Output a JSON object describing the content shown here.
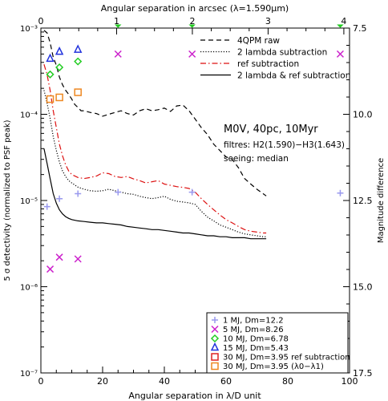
{
  "chart_data": {
    "type": "line",
    "title": "",
    "xlabel": "Angular separation in λ/D unit",
    "x2label": "Angular separation in arcsec (λ=1.590μm)",
    "ylabel": "5 σ detectivity (normalized to PSF peak)",
    "y2label": "Magnitude difference",
    "xlim": [
      0,
      100
    ],
    "ylim": [
      1e-07,
      0.001
    ],
    "y_scale": "log",
    "x2lim": [
      0,
      4.075
    ],
    "y2lim": [
      7.5,
      17.5
    ],
    "x_ticks": [
      "0",
      "20",
      "40",
      "60",
      "80",
      "100"
    ],
    "x2_ticks": [
      "0",
      "1",
      "2",
      "3",
      "4"
    ],
    "y_ticks": [
      "10⁻⁷",
      "10⁻⁶",
      "10⁻⁵",
      "10⁻⁴",
      "10⁻³"
    ],
    "y2_ticks": [
      "7.5",
      "10.0",
      "12.5",
      "15.0",
      "17.5"
    ],
    "grid": false,
    "legend_position": "top-right",
    "info_text": {
      "line1": "M0V, 40pc, 10Myr",
      "line2": "filtres: H2(1.590)−H3(1.643)",
      "line3": "seeing: median"
    },
    "series": [
      {
        "name": "4QPM raw",
        "color": "#000000",
        "dash": "dashed",
        "points": [
          [
            1,
            0.00094
          ],
          [
            2,
            0.00088
          ],
          [
            3,
            0.00068
          ],
          [
            4,
            0.00046
          ],
          [
            5,
            0.00037
          ],
          [
            6,
            0.00027
          ],
          [
            7,
            0.00022
          ],
          [
            8,
            0.00019
          ],
          [
            9,
            0.00017
          ],
          [
            10,
            0.00015
          ],
          [
            11,
            0.00013
          ],
          [
            12,
            0.00012
          ],
          [
            13,
            0.00011
          ],
          [
            14,
            0.00011
          ],
          [
            16,
            0.000105
          ],
          [
            18,
            0.000102
          ],
          [
            20,
            9.5e-05
          ],
          [
            22,
            0.0001
          ],
          [
            24,
            0.000105
          ],
          [
            26,
            0.00011
          ],
          [
            28,
            0.000102
          ],
          [
            30,
            9.8e-05
          ],
          [
            32,
            0.00011
          ],
          [
            34,
            0.000116
          ],
          [
            36,
            0.00011
          ],
          [
            38,
            0.000113
          ],
          [
            40,
            0.000118
          ],
          [
            42,
            0.000108
          ],
          [
            44,
            0.000125
          ],
          [
            46,
            0.000128
          ],
          [
            48,
            0.00011
          ],
          [
            50,
            8.8e-05
          ],
          [
            52,
            7e-05
          ],
          [
            54,
            5.8e-05
          ],
          [
            56,
            4.5e-05
          ],
          [
            58,
            3.8e-05
          ],
          [
            60,
            3.2e-05
          ],
          [
            62,
            3e-05
          ],
          [
            64,
            2.4e-05
          ],
          [
            66,
            1.8e-05
          ],
          [
            68,
            1.55e-05
          ],
          [
            70,
            1.35e-05
          ],
          [
            72,
            1.2e-05
          ],
          [
            73,
            1.13e-05
          ]
        ]
      },
      {
        "name": "2 lambda subtraction",
        "color": "#000000",
        "dash": "dotted",
        "points": [
          [
            1,
            0.00019
          ],
          [
            2,
            0.000135
          ],
          [
            3,
            9e-05
          ],
          [
            4,
            5.5e-05
          ],
          [
            5,
            3.8e-05
          ],
          [
            6,
            2.8e-05
          ],
          [
            7,
            2.2e-05
          ],
          [
            8,
            1.9e-05
          ],
          [
            9,
            1.7e-05
          ],
          [
            10,
            1.6e-05
          ],
          [
            12,
            1.43e-05
          ],
          [
            14,
            1.35e-05
          ],
          [
            16,
            1.3e-05
          ],
          [
            18,
            1.28e-05
          ],
          [
            20,
            1.3e-05
          ],
          [
            22,
            1.35e-05
          ],
          [
            24,
            1.3e-05
          ],
          [
            26,
            1.25e-05
          ],
          [
            28,
            1.2e-05
          ],
          [
            30,
            1.18e-05
          ],
          [
            32,
            1.12e-05
          ],
          [
            34,
            1.08e-05
          ],
          [
            36,
            1.05e-05
          ],
          [
            38,
            1.08e-05
          ],
          [
            40,
            1.12e-05
          ],
          [
            42,
            1.03e-05
          ],
          [
            44,
            9.8e-06
          ],
          [
            46,
            9.6e-06
          ],
          [
            48,
            9.4e-06
          ],
          [
            50,
            9e-06
          ],
          [
            52,
            7.5e-06
          ],
          [
            54,
            6.4e-06
          ],
          [
            56,
            5.8e-06
          ],
          [
            58,
            5.2e-06
          ],
          [
            60,
            4.9e-06
          ],
          [
            62,
            4.6e-06
          ],
          [
            64,
            4.3e-06
          ],
          [
            66,
            4.1e-06
          ],
          [
            68,
            4e-06
          ],
          [
            70,
            3.9e-06
          ],
          [
            72,
            3.8e-06
          ],
          [
            73,
            3.8e-06
          ]
        ]
      },
      {
        "name": "ref subtraction",
        "color": "#dd1111",
        "dash": "dashdot",
        "points": [
          [
            1,
            0.00038
          ],
          [
            2,
            0.00029
          ],
          [
            3,
            0.00019
          ],
          [
            4,
            0.00011
          ],
          [
            5,
            7e-05
          ],
          [
            6,
            4.5e-05
          ],
          [
            7,
            3.3e-05
          ],
          [
            8,
            2.6e-05
          ],
          [
            9,
            2.2e-05
          ],
          [
            10,
            2e-05
          ],
          [
            12,
            1.85e-05
          ],
          [
            14,
            1.8e-05
          ],
          [
            16,
            1.85e-05
          ],
          [
            18,
            1.92e-05
          ],
          [
            20,
            2.1e-05
          ],
          [
            22,
            2.05e-05
          ],
          [
            24,
            1.9e-05
          ],
          [
            26,
            1.85e-05
          ],
          [
            28,
            1.9e-05
          ],
          [
            30,
            1.78e-05
          ],
          [
            32,
            1.7e-05
          ],
          [
            34,
            1.6e-05
          ],
          [
            36,
            1.65e-05
          ],
          [
            38,
            1.7e-05
          ],
          [
            40,
            1.55e-05
          ],
          [
            42,
            1.5e-05
          ],
          [
            44,
            1.45e-05
          ],
          [
            46,
            1.42e-05
          ],
          [
            48,
            1.38e-05
          ],
          [
            50,
            1.25e-05
          ],
          [
            52,
            1.05e-05
          ],
          [
            54,
            9e-06
          ],
          [
            56,
            7.8e-06
          ],
          [
            58,
            6.8e-06
          ],
          [
            60,
            6e-06
          ],
          [
            62,
            5.5e-06
          ],
          [
            64,
            5e-06
          ],
          [
            66,
            4.6e-06
          ],
          [
            68,
            4.4e-06
          ],
          [
            70,
            4.3e-06
          ],
          [
            72,
            4.2e-06
          ],
          [
            73,
            4.2e-06
          ]
        ]
      },
      {
        "name": "2 lambda & ref subtraction",
        "color": "#000000",
        "dash": "solid",
        "points": [
          [
            1,
            4e-05
          ],
          [
            2,
            2.7e-05
          ],
          [
            3,
            1.8e-05
          ],
          [
            4,
            1.2e-05
          ],
          [
            5,
            9.3e-06
          ],
          [
            6,
            7.8e-06
          ],
          [
            7,
            7e-06
          ],
          [
            8,
            6.5e-06
          ],
          [
            9,
            6.2e-06
          ],
          [
            10,
            6e-06
          ],
          [
            12,
            5.8e-06
          ],
          [
            14,
            5.7e-06
          ],
          [
            16,
            5.6e-06
          ],
          [
            18,
            5.5e-06
          ],
          [
            20,
            5.5e-06
          ],
          [
            22,
            5.4e-06
          ],
          [
            24,
            5.3e-06
          ],
          [
            26,
            5.2e-06
          ],
          [
            28,
            5e-06
          ],
          [
            30,
            4.9e-06
          ],
          [
            32,
            4.8e-06
          ],
          [
            34,
            4.7e-06
          ],
          [
            36,
            4.6e-06
          ],
          [
            38,
            4.6e-06
          ],
          [
            40,
            4.5e-06
          ],
          [
            42,
            4.4e-06
          ],
          [
            44,
            4.3e-06
          ],
          [
            46,
            4.2e-06
          ],
          [
            48,
            4.2e-06
          ],
          [
            50,
            4.1e-06
          ],
          [
            52,
            4e-06
          ],
          [
            54,
            3.9e-06
          ],
          [
            56,
            3.9e-06
          ],
          [
            58,
            3.8e-06
          ],
          [
            60,
            3.8e-06
          ],
          [
            62,
            3.7e-06
          ],
          [
            64,
            3.7e-06
          ],
          [
            66,
            3.7e-06
          ],
          [
            68,
            3.6e-06
          ],
          [
            70,
            3.6e-06
          ],
          [
            72,
            3.6e-06
          ],
          [
            73,
            3.6e-06
          ]
        ]
      }
    ],
    "markers": [
      {
        "name": "1 MJ, Dm=12.2",
        "symbol": "plus",
        "color": "#9999ee",
        "points": [
          [
            2,
            8.5e-06
          ],
          [
            6,
            1.05e-05
          ],
          [
            12,
            1.2e-05
          ],
          [
            25,
            1.25e-05
          ],
          [
            49,
            1.25e-05
          ],
          [
            97,
            1.22e-05
          ]
        ]
      },
      {
        "name": "5 MJ, Dm=8.26",
        "symbol": "cross",
        "color": "#cc22cc",
        "points": [
          [
            3,
            1.6e-06
          ],
          [
            6,
            2.2e-06
          ],
          [
            12,
            2.1e-06
          ],
          [
            25,
            0.0005
          ],
          [
            49,
            0.0005
          ],
          [
            97,
            0.0005
          ]
        ]
      },
      {
        "name": "10 MJ, Dm=6.78",
        "symbol": "diamond",
        "color": "#22cc22",
        "points": [
          [
            3,
            0.00029
          ],
          [
            6,
            0.00035
          ],
          [
            12,
            0.00041
          ]
        ]
      },
      {
        "name": "15 MJ, Dm=5.43",
        "symbol": "triangle",
        "color": "#2233dd",
        "points": [
          [
            3,
            0.00044
          ],
          [
            6,
            0.00053
          ],
          [
            12,
            0.00056
          ]
        ]
      },
      {
        "name": "30 MJ, Dm=3.95 ref subtraction",
        "symbol": "square",
        "color": "#dd2222",
        "points": []
      },
      {
        "name": "30 MJ, Dm=3.95 (λ0−λ1)",
        "symbol": "square",
        "color": "#ee8822",
        "points": [
          [
            3,
            0.00015
          ],
          [
            6,
            0.000157
          ],
          [
            12,
            0.00018
          ]
        ]
      }
    ],
    "offscale_markers": [
      {
        "x": 25,
        "color": "#22cc22",
        "symbol": "diamond"
      },
      {
        "x": 49,
        "color": "#22cc22",
        "symbol": "diamond"
      },
      {
        "x": 97,
        "color": "#22cc22",
        "symbol": "diamond"
      }
    ]
  }
}
